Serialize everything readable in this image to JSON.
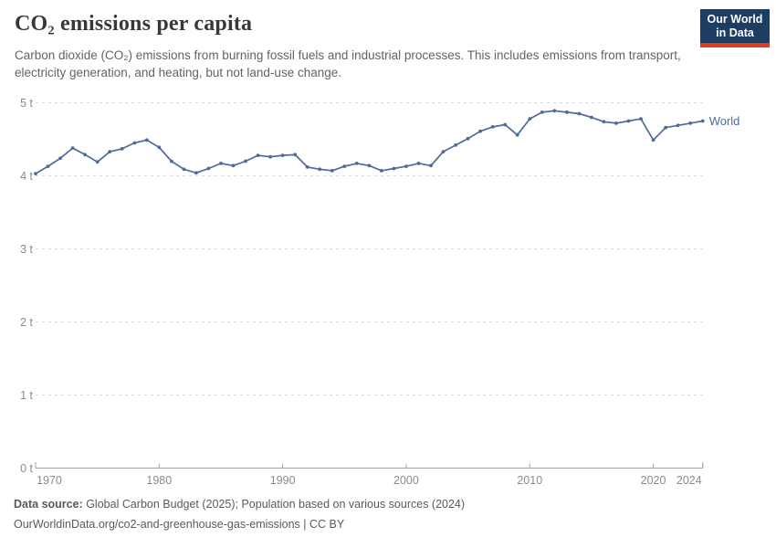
{
  "header": {
    "title": "CO₂ emissions per capita",
    "subtitle": "Carbon dioxide (CO₂) emissions from burning fossil fuels and industrial processes. This includes emissions from transport, electricity generation, and heating, but not land-use change.",
    "logo": {
      "line1": "Our World",
      "line2": "in Data"
    }
  },
  "chart_data": {
    "type": "line",
    "title": "CO₂ emissions per capita",
    "unit": "t",
    "xlim": [
      1970,
      2024
    ],
    "ylim": [
      0,
      5
    ],
    "x_ticks": [
      1970,
      1980,
      1990,
      2000,
      2010,
      2020,
      2024
    ],
    "y_ticks": [
      0,
      1,
      2,
      3,
      4,
      5
    ],
    "y_tick_suffix": " t",
    "grid": "dashed-horizontal",
    "legend_position": "end-of-line",
    "series": [
      {
        "name": "World",
        "color": "#4c6a9c",
        "x": [
          1970,
          1971,
          1972,
          1973,
          1974,
          1975,
          1976,
          1977,
          1978,
          1979,
          1980,
          1981,
          1982,
          1983,
          1984,
          1985,
          1986,
          1987,
          1988,
          1989,
          1990,
          1991,
          1992,
          1993,
          1994,
          1995,
          1996,
          1997,
          1998,
          1999,
          2000,
          2001,
          2002,
          2003,
          2004,
          2005,
          2006,
          2007,
          2008,
          2009,
          2010,
          2011,
          2012,
          2013,
          2014,
          2015,
          2016,
          2017,
          2018,
          2019,
          2020,
          2021,
          2022,
          2023,
          2024
        ],
        "values": [
          4.03,
          4.13,
          4.24,
          4.38,
          4.29,
          4.19,
          4.33,
          4.37,
          4.45,
          4.49,
          4.39,
          4.2,
          4.09,
          4.04,
          4.1,
          4.17,
          4.14,
          4.2,
          4.28,
          4.26,
          4.28,
          4.29,
          4.12,
          4.09,
          4.07,
          4.13,
          4.17,
          4.14,
          4.07,
          4.1,
          4.13,
          4.17,
          4.14,
          4.33,
          4.42,
          4.51,
          4.61,
          4.67,
          4.7,
          4.56,
          4.78,
          4.87,
          4.89,
          4.87,
          4.85,
          4.8,
          4.74,
          4.72,
          4.75,
          4.78,
          4.49,
          4.66,
          4.69,
          4.72,
          4.75
        ]
      }
    ]
  },
  "footer": {
    "source_label": "Data source:",
    "source_text": " Global Carbon Budget (2025); Population based on various sources (2024)",
    "url": "OurWorldinData.org/co2-and-greenhouse-gas-emissions",
    "separator": " | ",
    "license": "CC BY"
  },
  "colors": {
    "accent_blue": "#4c6a9c",
    "logo_navy": "#1d3d63",
    "logo_red": "#dc3e22",
    "grid": "#d9d9d9",
    "axis": "#a5a5a5",
    "tick_label": "#8b8b8b",
    "title_text": "#383838",
    "subtitle_text": "#636363",
    "footer_text": "#5a5a5a"
  }
}
